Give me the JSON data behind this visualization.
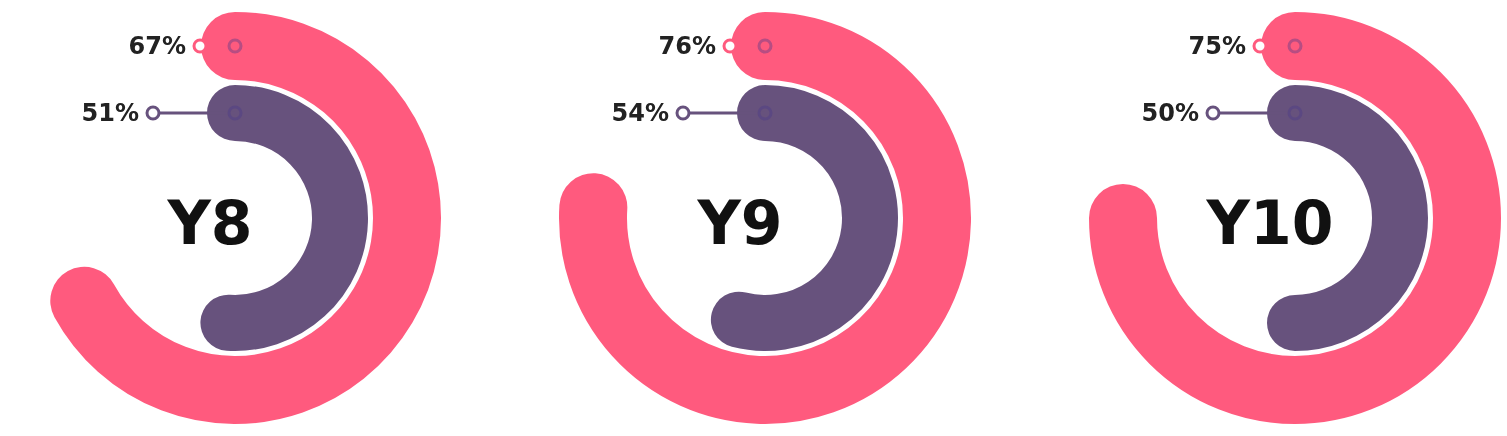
{
  "chart_data": [
    {
      "type": "other",
      "title": "Y8",
      "values": [
        67,
        51
      ],
      "colors": [
        "#ff5a7e",
        "#67527d"
      ],
      "value_labels": [
        "67%",
        "51%"
      ]
    },
    {
      "type": "other",
      "title": "Y9",
      "values": [
        76,
        54
      ],
      "colors": [
        "#ff5a7e",
        "#67527d"
      ],
      "value_labels": [
        "76%",
        "54%"
      ]
    },
    {
      "type": "other",
      "title": "Y10",
      "values": [
        75,
        50
      ],
      "colors": [
        "#ff5a7e",
        "#67527d"
      ],
      "value_labels": [
        "75%",
        "50%"
      ]
    }
  ]
}
